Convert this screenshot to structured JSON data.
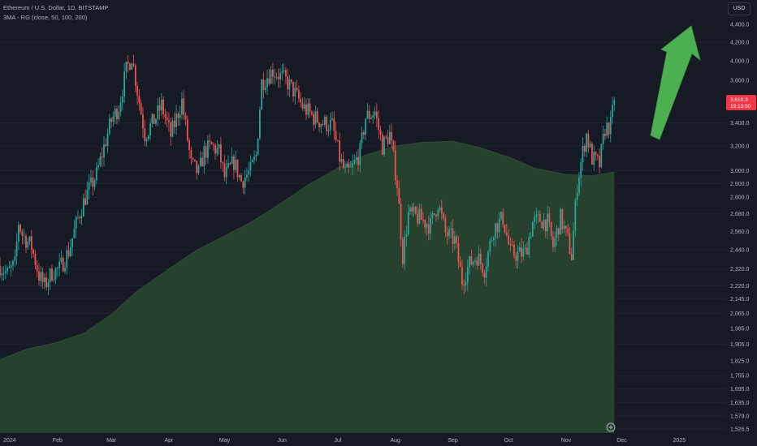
{
  "legend": {
    "symbol": "Ethereum / U.S. Dollar, 1D, BITSTAMP",
    "indicator": "3MA - RG (close, 50, 100, 200)"
  },
  "currency": "USD",
  "current_price": {
    "value": "3,610.3",
    "countdown": "19:13:50",
    "color": "#f23645"
  },
  "colors": {
    "background": "#161a25",
    "up": "#26a69a",
    "down": "#ef5350",
    "ma_fill": "#27412f",
    "arrow": "#4caf50"
  },
  "chart_data": {
    "type": "candlestick",
    "price_axis": {
      "scale": "log",
      "ticks": [
        1526.5,
        1579.0,
        1635.0,
        1695.0,
        1755.0,
        1825.0,
        1905.0,
        1985.0,
        2065.0,
        2145.0,
        2220.0,
        2320.0,
        2440.0,
        2560.0,
        2680.0,
        2800.0,
        2900.0,
        3000.0,
        3200.0,
        3400.0,
        3800.0,
        4000.0,
        4200.0,
        4400.0
      ],
      "tick_labels": [
        "1,526.5",
        "1,579.0",
        "1,635.0",
        "1,695.0",
        "1,755.0",
        "1,825.0",
        "1,905.0",
        "1,985.0",
        "2,065.0",
        "2,145.0",
        "2,220.0",
        "2,320.0",
        "2,440.0",
        "2,560.0",
        "2,680.0",
        "2,800.0",
        "2,900.0",
        "3,000.0",
        "3,200.0",
        "3,400.0",
        "3,800.0",
        "4,000.0",
        "4,200.0",
        "4,400.0"
      ]
    },
    "time_axis": {
      "labels": [
        "2024",
        "Feb",
        "Mar",
        "Apr",
        "May",
        "Jun",
        "Jul",
        "Aug",
        "Sep",
        "Oct",
        "Nov",
        "Dec",
        "2025"
      ]
    },
    "close_anchors": [
      {
        "date": "2024-01-01",
        "close": 2340
      },
      {
        "date": "2024-01-05",
        "close": 2290
      },
      {
        "date": "2024-01-09",
        "close": 2350
      },
      {
        "date": "2024-01-11",
        "close": 2620
      },
      {
        "date": "2024-01-13",
        "close": 2540
      },
      {
        "date": "2024-01-18",
        "close": 2460
      },
      {
        "date": "2024-01-22",
        "close": 2280
      },
      {
        "date": "2024-01-25",
        "close": 2220
      },
      {
        "date": "2024-01-29",
        "close": 2300
      },
      {
        "date": "2024-02-02",
        "close": 2320
      },
      {
        "date": "2024-02-07",
        "close": 2430
      },
      {
        "date": "2024-02-12",
        "close": 2650
      },
      {
        "date": "2024-02-16",
        "close": 2800
      },
      {
        "date": "2024-02-22",
        "close": 2970
      },
      {
        "date": "2024-02-27",
        "close": 3250
      },
      {
        "date": "2024-03-01",
        "close": 3420
      },
      {
        "date": "2024-03-05",
        "close": 3550
      },
      {
        "date": "2024-03-09",
        "close": 3900
      },
      {
        "date": "2024-03-12",
        "close": 4050
      },
      {
        "date": "2024-03-15",
        "close": 3700
      },
      {
        "date": "2024-03-19",
        "close": 3300
      },
      {
        "date": "2024-03-22",
        "close": 3370
      },
      {
        "date": "2024-03-25",
        "close": 3450
      },
      {
        "date": "2024-03-28",
        "close": 3560
      },
      {
        "date": "2024-04-02",
        "close": 3290
      },
      {
        "date": "2024-04-08",
        "close": 3600
      },
      {
        "date": "2024-04-13",
        "close": 3050
      },
      {
        "date": "2024-04-17",
        "close": 2980
      },
      {
        "date": "2024-04-20",
        "close": 3150
      },
      {
        "date": "2024-04-24",
        "close": 3200
      },
      {
        "date": "2024-04-28",
        "close": 3150
      },
      {
        "date": "2024-05-01",
        "close": 2950
      },
      {
        "date": "2024-05-06",
        "close": 3070
      },
      {
        "date": "2024-05-10",
        "close": 2920
      },
      {
        "date": "2024-05-15",
        "close": 3000
      },
      {
        "date": "2024-05-18",
        "close": 3120
      },
      {
        "date": "2024-05-21",
        "close": 3780
      },
      {
        "date": "2024-05-27",
        "close": 3900
      },
      {
        "date": "2024-06-03",
        "close": 3800
      },
      {
        "date": "2024-06-07",
        "close": 3700
      },
      {
        "date": "2024-06-12",
        "close": 3550
      },
      {
        "date": "2024-06-18",
        "close": 3450
      },
      {
        "date": "2024-06-23",
        "close": 3400
      },
      {
        "date": "2024-06-28",
        "close": 3380
      },
      {
        "date": "2024-07-02",
        "close": 3100
      },
      {
        "date": "2024-07-05",
        "close": 2980
      },
      {
        "date": "2024-07-08",
        "close": 3000
      },
      {
        "date": "2024-07-13",
        "close": 3150
      },
      {
        "date": "2024-07-16",
        "close": 3450
      },
      {
        "date": "2024-07-21",
        "close": 3500
      },
      {
        "date": "2024-07-25",
        "close": 3200
      },
      {
        "date": "2024-07-29",
        "close": 3300
      },
      {
        "date": "2024-08-02",
        "close": 2900
      },
      {
        "date": "2024-08-05",
        "close": 2400
      },
      {
        "date": "2024-08-08",
        "close": 2680
      },
      {
        "date": "2024-08-14",
        "close": 2650
      },
      {
        "date": "2024-08-20",
        "close": 2600
      },
      {
        "date": "2024-08-24",
        "close": 2760
      },
      {
        "date": "2024-08-28",
        "close": 2550
      },
      {
        "date": "2024-09-02",
        "close": 2500
      },
      {
        "date": "2024-09-06",
        "close": 2250
      },
      {
        "date": "2024-09-10",
        "close": 2350
      },
      {
        "date": "2024-09-14",
        "close": 2400
      },
      {
        "date": "2024-09-18",
        "close": 2320
      },
      {
        "date": "2024-09-23",
        "close": 2580
      },
      {
        "date": "2024-09-28",
        "close": 2650
      },
      {
        "date": "2024-10-02",
        "close": 2420
      },
      {
        "date": "2024-10-06",
        "close": 2410
      },
      {
        "date": "2024-10-10",
        "close": 2420
      },
      {
        "date": "2024-10-14",
        "close": 2620
      },
      {
        "date": "2024-10-18",
        "close": 2640
      },
      {
        "date": "2024-10-22",
        "close": 2620
      },
      {
        "date": "2024-10-25",
        "close": 2460
      },
      {
        "date": "2024-10-29",
        "close": 2650
      },
      {
        "date": "2024-11-02",
        "close": 2500
      },
      {
        "date": "2024-11-04",
        "close": 2400
      },
      {
        "date": "2024-11-07",
        "close": 2900
      },
      {
        "date": "2024-11-10",
        "close": 3150
      },
      {
        "date": "2024-11-12",
        "close": 3300
      },
      {
        "date": "2024-11-15",
        "close": 3100
      },
      {
        "date": "2024-11-19",
        "close": 3050
      },
      {
        "date": "2024-11-22",
        "close": 3350
      },
      {
        "date": "2024-11-25",
        "close": 3380
      },
      {
        "date": "2024-11-27",
        "close": 3610
      }
    ],
    "ma_anchors": [
      {
        "date": "2024-01-01",
        "value": 1830
      },
      {
        "date": "2024-01-15",
        "value": 1880
      },
      {
        "date": "2024-02-01",
        "value": 1915
      },
      {
        "date": "2024-02-15",
        "value": 1960
      },
      {
        "date": "2024-03-01",
        "value": 2060
      },
      {
        "date": "2024-03-15",
        "value": 2190
      },
      {
        "date": "2024-04-01",
        "value": 2320
      },
      {
        "date": "2024-04-15",
        "value": 2430
      },
      {
        "date": "2024-05-01",
        "value": 2530
      },
      {
        "date": "2024-05-15",
        "value": 2620
      },
      {
        "date": "2024-06-01",
        "value": 2760
      },
      {
        "date": "2024-06-15",
        "value": 2890
      },
      {
        "date": "2024-07-01",
        "value": 3020
      },
      {
        "date": "2024-07-15",
        "value": 3120
      },
      {
        "date": "2024-08-01",
        "value": 3200
      },
      {
        "date": "2024-08-15",
        "value": 3230
      },
      {
        "date": "2024-09-01",
        "value": 3240
      },
      {
        "date": "2024-09-15",
        "value": 3190
      },
      {
        "date": "2024-10-01",
        "value": 3110
      },
      {
        "date": "2024-10-15",
        "value": 3020
      },
      {
        "date": "2024-11-01",
        "value": 2970
      },
      {
        "date": "2024-11-15",
        "value": 2960
      },
      {
        "date": "2024-11-27",
        "value": 2990
      }
    ]
  }
}
